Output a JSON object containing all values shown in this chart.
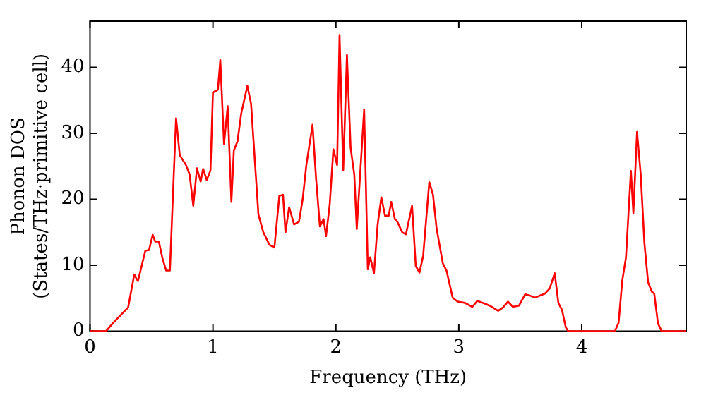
{
  "chart_data": {
    "type": "line",
    "xlabel": "Frequency (THz)",
    "ylabel": "Phonon DOS\n(States/THz·primitive cell)",
    "xlim": [
      0,
      4.85
    ],
    "ylim": [
      0,
      47
    ],
    "xticks": [
      0,
      1,
      2,
      3,
      4
    ],
    "yticks": [
      0,
      10,
      20,
      30,
      40
    ],
    "grid": false,
    "legend": false,
    "marker": "none",
    "line_style": "solid",
    "x": [
      0,
      0.13,
      0.19,
      0.31,
      0.36,
      0.39,
      0.45,
      0.48,
      0.51,
      0.53,
      0.56,
      0.59,
      0.62,
      0.65,
      0.7,
      0.73,
      0.78,
      0.81,
      0.84,
      0.87,
      0.9,
      0.92,
      0.95,
      0.98,
      1.0,
      1.04,
      1.06,
      1.09,
      1.12,
      1.15,
      1.17,
      1.2,
      1.23,
      1.28,
      1.31,
      1.37,
      1.41,
      1.46,
      1.5,
      1.54,
      1.57,
      1.59,
      1.62,
      1.66,
      1.7,
      1.73,
      1.76,
      1.81,
      1.84,
      1.87,
      1.9,
      1.92,
      1.95,
      1.98,
      2.01,
      2.03,
      2.06,
      2.09,
      2.12,
      2.15,
      2.17,
      2.23,
      2.26,
      2.28,
      2.31,
      2.34,
      2.37,
      2.4,
      2.43,
      2.45,
      2.48,
      2.5,
      2.54,
      2.57,
      2.62,
      2.65,
      2.68,
      2.71,
      2.76,
      2.79,
      2.82,
      2.87,
      2.9,
      2.95,
      2.99,
      3.05,
      3.11,
      3.15,
      3.21,
      3.26,
      3.32,
      3.36,
      3.4,
      3.44,
      3.49,
      3.54,
      3.58,
      3.62,
      3.7,
      3.74,
      3.78,
      3.81,
      3.84,
      3.87,
      3.89,
      4.27,
      4.3,
      4.33,
      4.36,
      4.4,
      4.42,
      4.45,
      4.48,
      4.51,
      4.54,
      4.57,
      4.59,
      4.62,
      4.65,
      4.85
    ],
    "series": [
      {
        "color": "#ff0000",
        "values": [
          0,
          0,
          1.3,
          3.6,
          8.6,
          7.6,
          12.2,
          12.3,
          14.6,
          13.6,
          13.6,
          11,
          9.2,
          9.2,
          32.3,
          26.7,
          25.2,
          23.8,
          19,
          24.7,
          22.7,
          24.6,
          22.9,
          24.4,
          36.2,
          36.6,
          41.1,
          28.4,
          34.1,
          19.6,
          27.4,
          28.8,
          33,
          37.2,
          34.5,
          17.7,
          15,
          13.1,
          12.7,
          20.5,
          20.7,
          15,
          18.8,
          16.2,
          16.6,
          20,
          25.2,
          31.3,
          22.9,
          15.9,
          17,
          14.4,
          19.2,
          27.6,
          25.2,
          44.9,
          24.4,
          41.9,
          27.8,
          23.7,
          15.5,
          33.6,
          9.4,
          11.2,
          8.8,
          16.2,
          20.3,
          17.5,
          17.5,
          19.6,
          17,
          16.6,
          15,
          14.7,
          19,
          9.9,
          8.9,
          11.4,
          22.6,
          20.7,
          15.5,
          10.3,
          9.2,
          5.1,
          4.5,
          4.3,
          3.7,
          4.6,
          4.2,
          3.8,
          3.1,
          3.6,
          4.5,
          3.7,
          3.9,
          5.6,
          5.4,
          5.1,
          5.7,
          6.5,
          8.8,
          4.3,
          3.2,
          0.6,
          0,
          0,
          1.3,
          7.7,
          11.2,
          24.3,
          17.9,
          30.2,
          23.7,
          13.3,
          7.4,
          6,
          5.7,
          1.2,
          0,
          0
        ]
      }
    ]
  }
}
